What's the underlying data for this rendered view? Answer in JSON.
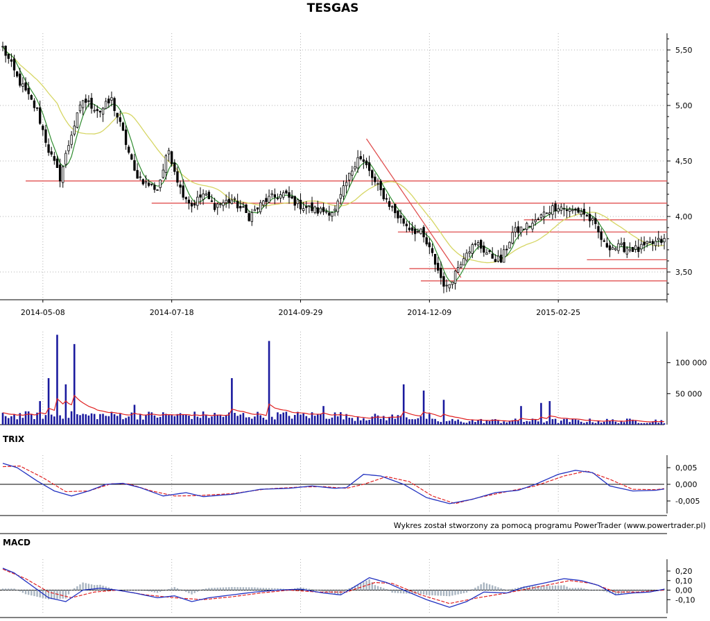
{
  "title": "TESGAS",
  "credit": "Wykres został stworzony za pomocą programu PowerTrader (www.powertrader.pl)",
  "colors": {
    "up": "#ffffff",
    "down": "#000000",
    "ma_short": "#2e8b2e",
    "ma_long": "#d6d664",
    "level": "#e05050",
    "volume": "#1a1a9e",
    "volume_avg": "#e02020",
    "osc_main": "#2030c0",
    "osc_signal": "#e02020",
    "histogram": "#a8b4c0",
    "grid": "#b0b0b0"
  },
  "chart_data": [
    {
      "type": "candlestick",
      "name": "price",
      "title": "TESGAS",
      "x_tick_labels": [
        "2014-05-08",
        "2014-07-18",
        "2014-09-29",
        "2014-12-09",
        "2015-02-25"
      ],
      "y_tick_labels": [
        "5,50",
        "5,00",
        "4,50",
        "4,00",
        "3,50"
      ],
      "ylim": [
        3.25,
        5.65
      ],
      "grid": true,
      "sessions": 232,
      "x_ticks_session": [
        14,
        59,
        104,
        149,
        194
      ],
      "key_closes": [
        [
          0,
          5.52
        ],
        [
          5,
          5.25
        ],
        [
          12,
          4.95
        ],
        [
          16,
          4.6
        ],
        [
          20,
          4.35
        ],
        [
          24,
          4.75
        ],
        [
          28,
          5.05
        ],
        [
          34,
          4.95
        ],
        [
          38,
          5.05
        ],
        [
          42,
          4.75
        ],
        [
          46,
          4.4
        ],
        [
          50,
          4.3
        ],
        [
          54,
          4.25
        ],
        [
          58,
          4.6
        ],
        [
          62,
          4.25
        ],
        [
          66,
          4.1
        ],
        [
          70,
          4.2
        ],
        [
          74,
          4.1
        ],
        [
          80,
          4.15
        ],
        [
          86,
          4.0
        ],
        [
          92,
          4.15
        ],
        [
          98,
          4.2
        ],
        [
          104,
          4.1
        ],
        [
          110,
          4.05
        ],
        [
          116,
          4.05
        ],
        [
          120,
          4.3
        ],
        [
          124,
          4.55
        ],
        [
          127,
          4.45
        ],
        [
          130,
          4.3
        ],
        [
          134,
          4.15
        ],
        [
          138,
          4.0
        ],
        [
          142,
          3.9
        ],
        [
          146,
          3.85
        ],
        [
          150,
          3.65
        ],
        [
          153,
          3.45
        ],
        [
          155,
          3.35
        ],
        [
          158,
          3.5
        ],
        [
          162,
          3.7
        ],
        [
          166,
          3.75
        ],
        [
          170,
          3.65
        ],
        [
          174,
          3.6
        ],
        [
          178,
          3.85
        ],
        [
          182,
          3.9
        ],
        [
          186,
          3.95
        ],
        [
          190,
          4.05
        ],
        [
          194,
          4.1
        ],
        [
          198,
          4.05
        ],
        [
          202,
          4.05
        ],
        [
          206,
          3.95
        ],
        [
          210,
          3.75
        ],
        [
          214,
          3.72
        ],
        [
          218,
          3.72
        ],
        [
          222,
          3.7
        ],
        [
          226,
          3.75
        ],
        [
          230,
          3.78
        ],
        [
          231,
          3.78
        ]
      ],
      "levels": [
        {
          "value": 4.32,
          "from_session": 8,
          "to_session": 232
        },
        {
          "value": 4.12,
          "from_session": 52,
          "to_session": 232
        },
        {
          "value": 3.97,
          "from_session": 182,
          "to_session": 232
        },
        {
          "value": 3.86,
          "from_session": 138,
          "to_session": 232
        },
        {
          "value": 3.61,
          "from_session": 204,
          "to_session": 232
        },
        {
          "value": 3.53,
          "from_session": 142,
          "to_session": 232
        },
        {
          "value": 3.42,
          "from_session": 146,
          "to_session": 232
        }
      ],
      "trendline": {
        "from": [
          127,
          4.7
        ],
        "to": [
          160,
          3.45
        ]
      }
    },
    {
      "type": "bar",
      "name": "volume",
      "y_tick_labels": [
        "100 000",
        "50 000"
      ],
      "ylim": [
        0,
        150000
      ],
      "grid": true,
      "spikes": [
        [
          13,
          38000
        ],
        [
          16,
          75000
        ],
        [
          19,
          145000
        ],
        [
          22,
          65000
        ],
        [
          25,
          130000
        ],
        [
          46,
          32000
        ],
        [
          80,
          75000
        ],
        [
          93,
          135000
        ],
        [
          112,
          30000
        ],
        [
          140,
          65000
        ],
        [
          147,
          55000
        ],
        [
          154,
          40000
        ],
        [
          181,
          30000
        ],
        [
          188,
          35000
        ],
        [
          191,
          38000
        ]
      ],
      "average_line": true
    },
    {
      "type": "line",
      "name": "TRIX",
      "title": "TRIX",
      "y_tick_labels": [
        "0,005",
        "0,000",
        "-0,005"
      ],
      "ylim": [
        -0.0075,
        0.0075
      ],
      "series": [
        {
          "key_points": [
            [
              0,
              0.0063
            ],
            [
              5,
              0.005
            ],
            [
              12,
              0.001
            ],
            [
              18,
              -0.002
            ],
            [
              24,
              -0.0035
            ],
            [
              30,
              -0.002
            ],
            [
              36,
              0
            ],
            [
              42,
              0.0003
            ],
            [
              48,
              -0.001
            ],
            [
              56,
              -0.0035
            ],
            [
              64,
              -0.0025
            ],
            [
              70,
              -0.0037
            ],
            [
              80,
              -0.003
            ],
            [
              90,
              -0.0015
            ],
            [
              100,
              -0.0012
            ],
            [
              108,
              -0.0005
            ],
            [
              116,
              -0.0012
            ],
            [
              120,
              -0.001
            ],
            [
              126,
              0.003
            ],
            [
              132,
              0.0025
            ],
            [
              140,
              0
            ],
            [
              148,
              -0.004
            ],
            [
              156,
              -0.0058
            ],
            [
              164,
              -0.0045
            ],
            [
              172,
              -0.0025
            ],
            [
              180,
              -0.0018
            ],
            [
              186,
              0
            ],
            [
              194,
              0.003
            ],
            [
              200,
              0.0042
            ],
            [
              206,
              0.0035
            ],
            [
              212,
              -0.0005
            ],
            [
              220,
              -0.002
            ],
            [
              228,
              -0.0018
            ],
            [
              231,
              -0.0014
            ]
          ]
        },
        {
          "key_points": [
            [
              0,
              0.0053
            ],
            [
              6,
              0.0055
            ],
            [
              14,
              0.002
            ],
            [
              22,
              -0.0022
            ],
            [
              30,
              -0.002
            ],
            [
              38,
              0.0002
            ],
            [
              44,
              0.0001
            ],
            [
              52,
              -0.002
            ],
            [
              60,
              -0.0035
            ],
            [
              68,
              -0.0034
            ],
            [
              80,
              -0.0028
            ],
            [
              92,
              -0.0014
            ],
            [
              104,
              -0.0008
            ],
            [
              112,
              -0.0007
            ],
            [
              120,
              -0.0012
            ],
            [
              126,
              0
            ],
            [
              134,
              0.0023
            ],
            [
              142,
              0.0008
            ],
            [
              150,
              -0.0035
            ],
            [
              158,
              -0.0058
            ],
            [
              166,
              -0.004
            ],
            [
              176,
              -0.0022
            ],
            [
              186,
              -0.0005
            ],
            [
              196,
              0.0025
            ],
            [
              204,
              0.004
            ],
            [
              212,
              0.0015
            ],
            [
              220,
              -0.0015
            ],
            [
              228,
              -0.0016
            ],
            [
              231,
              -0.0013
            ]
          ]
        }
      ]
    },
    {
      "type": "line",
      "name": "MACD",
      "title": "MACD",
      "y_tick_labels": [
        "0,20",
        "0,10",
        "0,00",
        "-0,10"
      ],
      "ylim": [
        -0.2,
        0.28
      ],
      "series": [
        {
          "key_points": [
            [
              0,
              0.23
            ],
            [
              4,
              0.18
            ],
            [
              10,
              0.05
            ],
            [
              16,
              -0.08
            ],
            [
              22,
              -0.12
            ],
            [
              28,
              0
            ],
            [
              34,
              0.02
            ],
            [
              40,
              0
            ],
            [
              46,
              -0.03
            ],
            [
              54,
              -0.08
            ],
            [
              60,
              -0.06
            ],
            [
              66,
              -0.12
            ],
            [
              72,
              -0.08
            ],
            [
              80,
              -0.05
            ],
            [
              88,
              -0.02
            ],
            [
              96,
              0
            ],
            [
              104,
              0.01
            ],
            [
              112,
              -0.03
            ],
            [
              118,
              -0.05
            ],
            [
              122,
              0.02
            ],
            [
              128,
              0.13
            ],
            [
              134,
              0.08
            ],
            [
              140,
              0
            ],
            [
              148,
              -0.1
            ],
            [
              156,
              -0.18
            ],
            [
              162,
              -0.12
            ],
            [
              168,
              -0.02
            ],
            [
              176,
              -0.03
            ],
            [
              182,
              0.03
            ],
            [
              190,
              0.08
            ],
            [
              196,
              0.12
            ],
            [
              202,
              0.1
            ],
            [
              208,
              0.05
            ],
            [
              214,
              -0.05
            ],
            [
              220,
              -0.03
            ],
            [
              226,
              -0.02
            ],
            [
              231,
              0.01
            ]
          ]
        },
        {
          "key_points": [
            [
              0,
              0.22
            ],
            [
              8,
              0.12
            ],
            [
              16,
              -0.02
            ],
            [
              24,
              -0.08
            ],
            [
              32,
              -0.02
            ],
            [
              40,
              0
            ],
            [
              50,
              -0.05
            ],
            [
              60,
              -0.08
            ],
            [
              70,
              -0.1
            ],
            [
              80,
              -0.07
            ],
            [
              90,
              -0.03
            ],
            [
              100,
              0
            ],
            [
              110,
              -0.02
            ],
            [
              120,
              -0.02
            ],
            [
              130,
              0.08
            ],
            [
              136,
              0.07
            ],
            [
              146,
              -0.05
            ],
            [
              156,
              -0.14
            ],
            [
              166,
              -0.08
            ],
            [
              176,
              -0.03
            ],
            [
              188,
              0.04
            ],
            [
              198,
              0.1
            ],
            [
              206,
              0.07
            ],
            [
              214,
              -0.02
            ],
            [
              222,
              -0.02
            ],
            [
              231,
              0
            ]
          ]
        }
      ],
      "histogram": true
    }
  ]
}
